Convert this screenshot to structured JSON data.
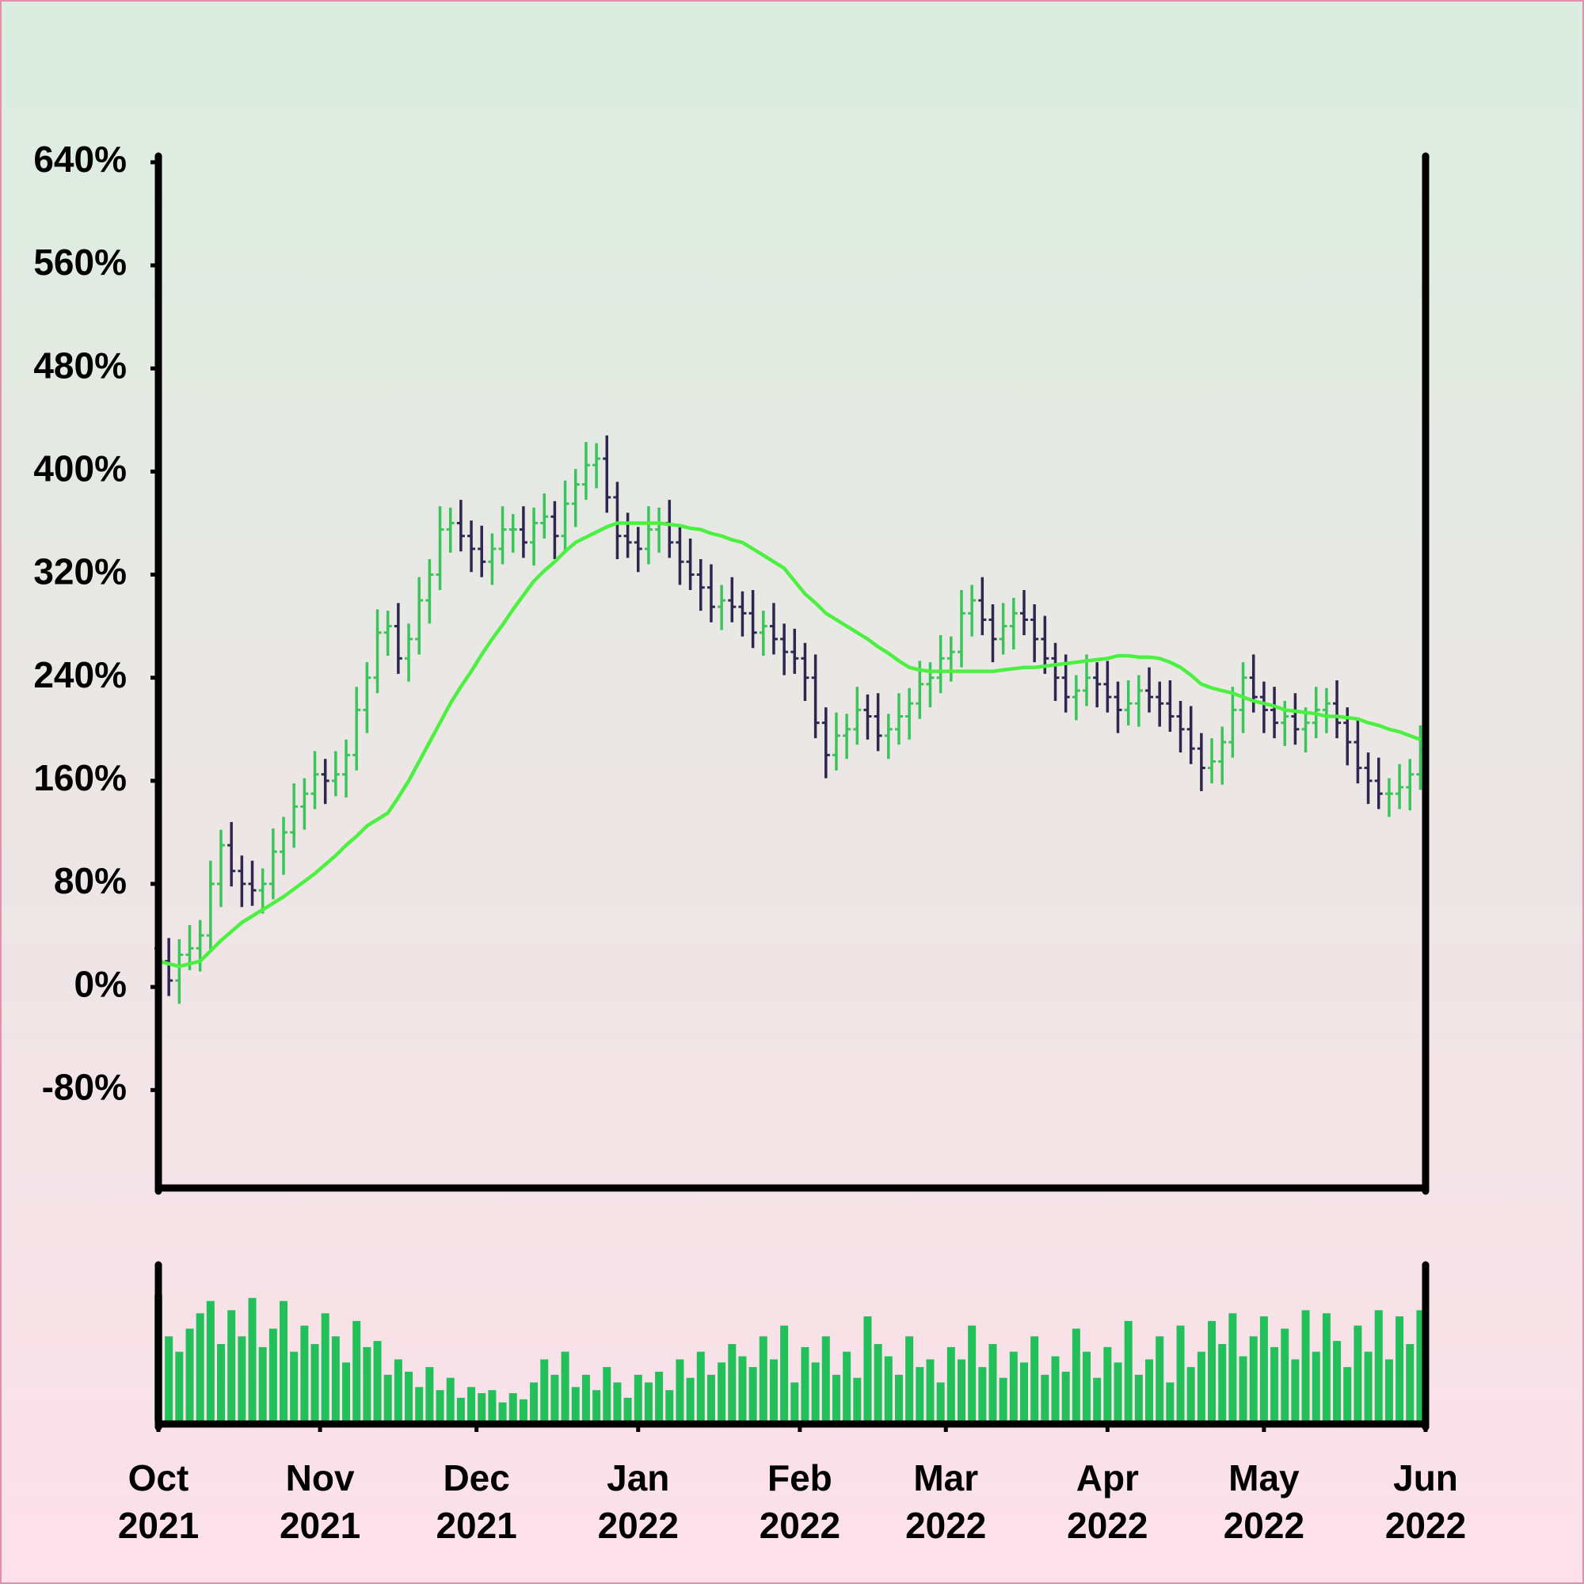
{
  "chart_data": {
    "type": "ohlc",
    "x": [
      0,
      2,
      4,
      6,
      8,
      10,
      12,
      14,
      16,
      18,
      20,
      22,
      24,
      26,
      28,
      30,
      32,
      34,
      36,
      38,
      40,
      42,
      44,
      46,
      48,
      50,
      52,
      54,
      56,
      58,
      60,
      62,
      64,
      66,
      68,
      70,
      72,
      74,
      76,
      78,
      80,
      82,
      84,
      86,
      88,
      90,
      92,
      94,
      96,
      98,
      100,
      102,
      104,
      106,
      108,
      110,
      112,
      114,
      116,
      118,
      120,
      122,
      124,
      126,
      128,
      130,
      132,
      134,
      136,
      138,
      140,
      142,
      144,
      146,
      148,
      150,
      152,
      154,
      156,
      158,
      160,
      162,
      164,
      166,
      168,
      170,
      172,
      174,
      176,
      178,
      180,
      182,
      184,
      186,
      188,
      190,
      192,
      194,
      196,
      198,
      200,
      202,
      204,
      206,
      208,
      210,
      212,
      214,
      216,
      218,
      220,
      222,
      224,
      226,
      228,
      230,
      232,
      234,
      236,
      238,
      240,
      242
    ],
    "open": [
      30,
      20,
      5,
      25,
      30,
      40,
      80,
      110,
      90,
      80,
      75,
      80,
      105,
      120,
      140,
      150,
      165,
      160,
      165,
      180,
      215,
      240,
      275,
      280,
      255,
      270,
      300,
      320,
      355,
      360,
      350,
      340,
      330,
      340,
      355,
      355,
      345,
      360,
      365,
      350,
      375,
      390,
      405,
      410,
      380,
      350,
      345,
      340,
      355,
      360,
      345,
      330,
      320,
      310,
      295,
      300,
      295,
      290,
      275,
      280,
      270,
      260,
      255,
      240,
      205,
      180,
      195,
      200,
      215,
      210,
      195,
      200,
      210,
      220,
      235,
      240,
      255,
      260,
      290,
      300,
      285,
      270,
      280,
      290,
      285,
      270,
      255,
      240,
      225,
      230,
      240,
      235,
      225,
      215,
      220,
      230,
      225,
      220,
      210,
      200,
      185,
      170,
      175,
      190,
      215,
      240,
      225,
      215,
      205,
      210,
      200,
      205,
      215,
      220,
      205,
      190,
      170,
      160,
      150,
      150,
      155,
      165
    ],
    "high": [
      42,
      38,
      37,
      48,
      52,
      98,
      122,
      128,
      102,
      98,
      92,
      123,
      132,
      158,
      162,
      183,
      177,
      183,
      192,
      233,
      252,
      293,
      292,
      298,
      282,
      318,
      332,
      373,
      372,
      378,
      362,
      358,
      352,
      373,
      367,
      373,
      372,
      383,
      377,
      393,
      402,
      423,
      422,
      428,
      392,
      368,
      357,
      373,
      372,
      378,
      357,
      348,
      332,
      328,
      312,
      318,
      307,
      308,
      292,
      298,
      282,
      278,
      267,
      258,
      217,
      213,
      212,
      233,
      227,
      228,
      212,
      228,
      232,
      253,
      252,
      273,
      272,
      308,
      312,
      318,
      297,
      298,
      302,
      308,
      297,
      288,
      267,
      258,
      242,
      258,
      252,
      253,
      237,
      238,
      242,
      248,
      237,
      238,
      222,
      218,
      197,
      193,
      202,
      233,
      252,
      258,
      237,
      233,
      222,
      228,
      217,
      233,
      232,
      238,
      217,
      208,
      182,
      178,
      162,
      173,
      177,
      203
    ],
    "low": [
      2,
      -7,
      -13,
      13,
      12,
      28,
      62,
      78,
      62,
      63,
      57,
      68,
      87,
      108,
      122,
      138,
      142,
      148,
      147,
      168,
      197,
      228,
      257,
      243,
      237,
      258,
      282,
      308,
      337,
      338,
      322,
      318,
      312,
      328,
      337,
      333,
      327,
      348,
      332,
      338,
      357,
      378,
      387,
      368,
      332,
      333,
      322,
      328,
      337,
      333,
      312,
      308,
      292,
      283,
      277,
      283,
      272,
      263,
      257,
      258,
      242,
      243,
      222,
      193,
      162,
      168,
      177,
      188,
      192,
      183,
      177,
      188,
      192,
      208,
      217,
      228,
      237,
      248,
      272,
      273,
      252,
      258,
      262,
      273,
      252,
      243,
      222,
      213,
      207,
      218,
      217,
      213,
      197,
      203,
      202,
      213,
      202,
      198,
      182,
      173,
      152,
      158,
      157,
      178,
      197,
      213,
      197,
      193,
      187,
      188,
      182,
      193,
      197,
      193,
      172,
      158,
      142,
      138,
      132,
      138,
      137,
      153
    ],
    "close": [
      20,
      5,
      25,
      30,
      40,
      80,
      110,
      90,
      80,
      75,
      80,
      105,
      120,
      140,
      150,
      165,
      160,
      165,
      180,
      215,
      240,
      275,
      280,
      255,
      270,
      300,
      320,
      355,
      360,
      350,
      340,
      330,
      340,
      355,
      355,
      345,
      360,
      365,
      350,
      375,
      390,
      405,
      410,
      380,
      350,
      345,
      340,
      355,
      360,
      345,
      330,
      320,
      310,
      295,
      300,
      295,
      290,
      275,
      280,
      270,
      260,
      255,
      240,
      205,
      180,
      195,
      200,
      215,
      210,
      195,
      200,
      210,
      220,
      235,
      240,
      255,
      260,
      290,
      300,
      285,
      270,
      280,
      290,
      285,
      270,
      255,
      240,
      225,
      230,
      240,
      235,
      225,
      215,
      220,
      230,
      225,
      220,
      210,
      200,
      185,
      170,
      175,
      190,
      215,
      240,
      225,
      215,
      205,
      210,
      200,
      205,
      215,
      220,
      205,
      190,
      170,
      160,
      150,
      150,
      155,
      165,
      185
    ],
    "up_color": "#3bc45a",
    "down_color": "#2e2650",
    "ma": {
      "color": "#4cf040",
      "values": [
        20,
        18,
        16,
        18,
        20,
        28,
        36,
        43,
        50,
        55,
        60,
        65,
        70,
        76,
        82,
        88,
        95,
        102,
        110,
        117,
        125,
        130,
        135,
        147,
        160,
        175,
        190,
        205,
        220,
        233,
        245,
        258,
        270,
        281,
        293,
        304,
        315,
        323,
        330,
        338,
        345,
        349,
        353,
        357,
        360,
        360,
        360,
        360,
        360,
        359,
        358,
        356,
        355,
        352,
        350,
        347,
        345,
        340,
        335,
        330,
        325,
        315,
        305,
        298,
        290,
        285,
        280,
        275,
        270,
        264,
        259,
        253,
        248,
        246,
        245,
        245,
        245,
        245,
        245,
        245,
        245,
        246,
        247,
        248,
        248,
        249,
        250,
        251,
        252,
        253,
        254,
        255,
        257,
        257,
        256,
        256,
        255,
        252,
        248,
        242,
        235,
        232,
        230,
        228,
        225,
        222,
        220,
        218,
        215,
        214,
        213,
        212,
        210,
        210,
        209,
        208,
        205,
        203,
        200,
        198,
        195,
        192
      ]
    },
    "volume": {
      "color": "#22c05a",
      "ylim": [
        0,
        100
      ],
      "values": [
        82,
        55,
        45,
        60,
        70,
        78,
        50,
        72,
        55,
        80,
        48,
        60,
        78,
        45,
        62,
        50,
        70,
        55,
        38,
        65,
        48,
        52,
        30,
        40,
        32,
        22,
        35,
        20,
        28,
        15,
        22,
        18,
        20,
        12,
        18,
        14,
        25,
        40,
        30,
        45,
        22,
        30,
        20,
        35,
        25,
        15,
        30,
        25,
        32,
        20,
        40,
        28,
        45,
        30,
        38,
        50,
        42,
        35,
        55,
        40,
        62,
        25,
        48,
        38,
        55,
        30,
        45,
        28,
        68,
        50,
        42,
        30,
        55,
        35,
        40,
        25,
        48,
        40,
        62,
        35,
        50,
        28,
        45,
        38,
        55,
        30,
        42,
        32,
        60,
        45,
        28,
        48,
        38,
        65,
        30,
        40,
        55,
        25,
        62,
        35,
        45,
        65,
        50,
        70,
        42,
        55,
        68,
        48,
        60,
        40,
        72,
        45,
        70,
        52,
        35,
        62,
        45,
        72,
        40,
        68,
        50,
        72
      ]
    },
    "xlim": [
      0,
      243
    ],
    "xticks": [
      {
        "value": 0,
        "label": "Oct 2021"
      },
      {
        "value": 31,
        "label": "Nov 2021"
      },
      {
        "value": 61,
        "label": "Dec 2021"
      },
      {
        "value": 92,
        "label": "Jan 2022"
      },
      {
        "value": 123,
        "label": "Feb 2022"
      },
      {
        "value": 151,
        "label": "Mar 2022"
      },
      {
        "value": 182,
        "label": "Apr 2022"
      },
      {
        "value": 212,
        "label": "May 2022"
      },
      {
        "value": 243,
        "label": "Jun 2022"
      }
    ],
    "ylim": [
      -156,
      643
    ],
    "yticks": [
      {
        "value": -80,
        "label": "-80%"
      },
      {
        "value": 0,
        "label": "0%"
      },
      {
        "value": 80,
        "label": "80%"
      },
      {
        "value": 160,
        "label": "160%"
      },
      {
        "value": 240,
        "label": "240%"
      },
      {
        "value": 320,
        "label": "320%"
      },
      {
        "value": 400,
        "label": "400%"
      },
      {
        "value": 480,
        "label": "480%"
      },
      {
        "value": 560,
        "label": "560%"
      },
      {
        "value": 640,
        "label": "640%"
      }
    ]
  }
}
